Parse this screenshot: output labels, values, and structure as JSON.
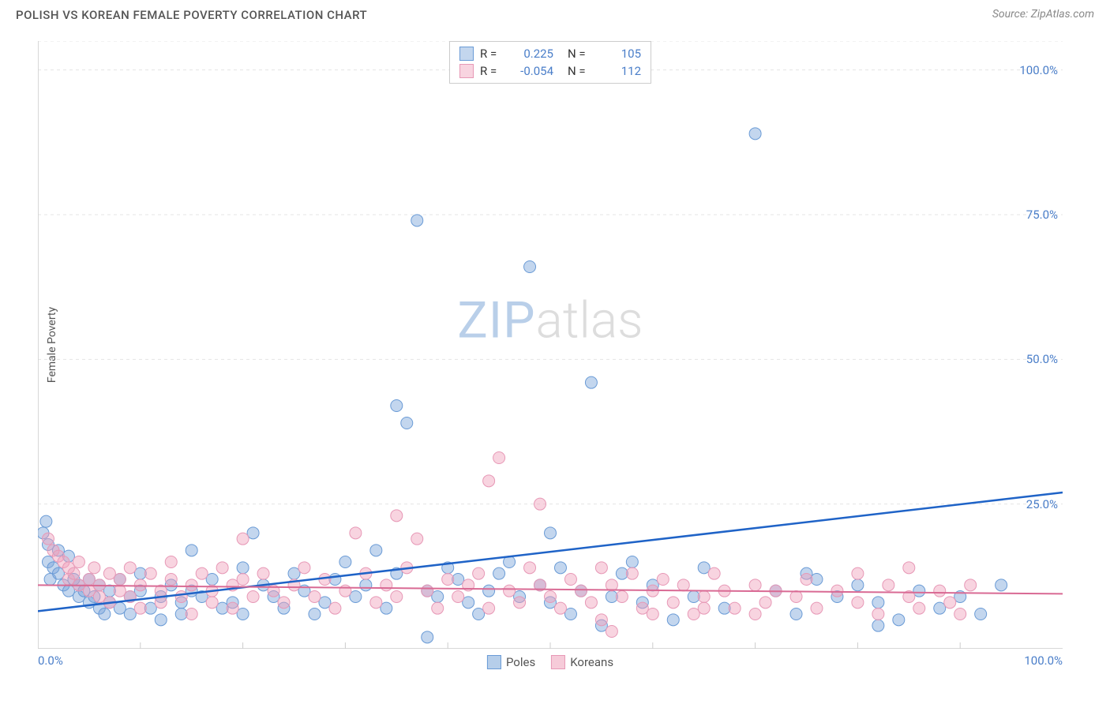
{
  "title": "POLISH VS KOREAN FEMALE POVERTY CORRELATION CHART",
  "source": "Source: ZipAtlas.com",
  "ylabel": "Female Poverty",
  "watermark": {
    "bold": "ZIP",
    "light": "atlas"
  },
  "chart": {
    "type": "scatter",
    "background_color": "#ffffff",
    "grid_color": "#e5e5e5",
    "axis_color": "#cccccc",
    "tick_minor_color": "#cccccc",
    "xlim": [
      0,
      100
    ],
    "ylim": [
      0,
      105
    ],
    "ytick_step": 25,
    "yticks": [
      {
        "v": 25,
        "label": "25.0%"
      },
      {
        "v": 50,
        "label": "50.0%"
      },
      {
        "v": 75,
        "label": "75.0%"
      },
      {
        "v": 100,
        "label": "100.0%"
      }
    ],
    "xticks_labeled": [
      {
        "v": 0,
        "label": "0.0%"
      },
      {
        "v": 100,
        "label": "100.0%"
      }
    ],
    "xticks_minor": [
      10,
      20,
      30,
      40,
      50,
      60,
      70,
      80,
      90
    ],
    "series": [
      {
        "name": "Poles",
        "fill": "rgba(122,165,217,0.45)",
        "stroke": "#6a9bd6",
        "line_color": "#1f63c7",
        "line_width": 2.5,
        "trend": {
          "y0": 6.5,
          "y100": 27
        },
        "R": "0.225",
        "N": "105",
        "points": [
          [
            0.5,
            20
          ],
          [
            0.8,
            22
          ],
          [
            1,
            18
          ],
          [
            1,
            15
          ],
          [
            1.2,
            12
          ],
          [
            1.5,
            14
          ],
          [
            2,
            13
          ],
          [
            2,
            17
          ],
          [
            2.5,
            11
          ],
          [
            3,
            10
          ],
          [
            3,
            16
          ],
          [
            3.5,
            12
          ],
          [
            4,
            11
          ],
          [
            4,
            9
          ],
          [
            4.5,
            10
          ],
          [
            5,
            12
          ],
          [
            5,
            8
          ],
          [
            5.5,
            9
          ],
          [
            6,
            7
          ],
          [
            6,
            11
          ],
          [
            6.5,
            6
          ],
          [
            7,
            8
          ],
          [
            7,
            10
          ],
          [
            8,
            12
          ],
          [
            8,
            7
          ],
          [
            9,
            9
          ],
          [
            9,
            6
          ],
          [
            10,
            10
          ],
          [
            10,
            13
          ],
          [
            11,
            7
          ],
          [
            12,
            9
          ],
          [
            12,
            5
          ],
          [
            13,
            11
          ],
          [
            14,
            8
          ],
          [
            14,
            6
          ],
          [
            15,
            10
          ],
          [
            15,
            17
          ],
          [
            16,
            9
          ],
          [
            17,
            12
          ],
          [
            18,
            7
          ],
          [
            19,
            8
          ],
          [
            20,
            14
          ],
          [
            20,
            6
          ],
          [
            21,
            20
          ],
          [
            22,
            11
          ],
          [
            23,
            9
          ],
          [
            24,
            7
          ],
          [
            25,
            13
          ],
          [
            26,
            10
          ],
          [
            27,
            6
          ],
          [
            28,
            8
          ],
          [
            29,
            12
          ],
          [
            30,
            15
          ],
          [
            31,
            9
          ],
          [
            32,
            11
          ],
          [
            33,
            17
          ],
          [
            34,
            7
          ],
          [
            35,
            42
          ],
          [
            35,
            13
          ],
          [
            36,
            39
          ],
          [
            37,
            74
          ],
          [
            38,
            10
          ],
          [
            38,
            2
          ],
          [
            39,
            9
          ],
          [
            40,
            14
          ],
          [
            41,
            12
          ],
          [
            42,
            8
          ],
          [
            43,
            6
          ],
          [
            44,
            10
          ],
          [
            45,
            13
          ],
          [
            46,
            15
          ],
          [
            47,
            9
          ],
          [
            48,
            66
          ],
          [
            49,
            11
          ],
          [
            50,
            8
          ],
          [
            50,
            20
          ],
          [
            51,
            14
          ],
          [
            52,
            6
          ],
          [
            53,
            10
          ],
          [
            54,
            46
          ],
          [
            55,
            4
          ],
          [
            56,
            9
          ],
          [
            57,
            13
          ],
          [
            58,
            15
          ],
          [
            59,
            8
          ],
          [
            60,
            11
          ],
          [
            62,
            5
          ],
          [
            64,
            9
          ],
          [
            65,
            14
          ],
          [
            67,
            7
          ],
          [
            70,
            89
          ],
          [
            72,
            10
          ],
          [
            74,
            6
          ],
          [
            76,
            12
          ],
          [
            78,
            9
          ],
          [
            80,
            11
          ],
          [
            82,
            8
          ],
          [
            84,
            5
          ],
          [
            86,
            10
          ],
          [
            88,
            7
          ],
          [
            90,
            9
          ],
          [
            92,
            6
          ],
          [
            94,
            11
          ],
          [
            82,
            4
          ],
          [
            75,
            13
          ]
        ]
      },
      {
        "name": "Koreans",
        "fill": "rgba(239,160,186,0.45)",
        "stroke": "#e798b6",
        "line_color": "#d96a94",
        "line_width": 2,
        "trend": {
          "y0": 11,
          "y100": 9.5
        },
        "R": "-0.054",
        "N": "112",
        "points": [
          [
            1,
            19
          ],
          [
            1.5,
            17
          ],
          [
            2,
            16
          ],
          [
            2.5,
            15
          ],
          [
            3,
            14
          ],
          [
            3,
            12
          ],
          [
            3.5,
            13
          ],
          [
            4,
            11
          ],
          [
            4,
            15
          ],
          [
            5,
            10
          ],
          [
            5,
            12
          ],
          [
            5.5,
            14
          ],
          [
            6,
            9
          ],
          [
            6,
            11
          ],
          [
            7,
            13
          ],
          [
            7,
            8
          ],
          [
            8,
            10
          ],
          [
            8,
            12
          ],
          [
            9,
            9
          ],
          [
            9,
            14
          ],
          [
            10,
            11
          ],
          [
            10,
            7
          ],
          [
            11,
            13
          ],
          [
            12,
            10
          ],
          [
            12,
            8
          ],
          [
            13,
            12
          ],
          [
            13,
            15
          ],
          [
            14,
            9
          ],
          [
            15,
            11
          ],
          [
            15,
            6
          ],
          [
            16,
            13
          ],
          [
            17,
            10
          ],
          [
            17,
            8
          ],
          [
            18,
            14
          ],
          [
            19,
            11
          ],
          [
            19,
            7
          ],
          [
            20,
            12
          ],
          [
            20,
            19
          ],
          [
            21,
            9
          ],
          [
            22,
            13
          ],
          [
            23,
            10
          ],
          [
            24,
            8
          ],
          [
            25,
            11
          ],
          [
            26,
            14
          ],
          [
            27,
            9
          ],
          [
            28,
            12
          ],
          [
            29,
            7
          ],
          [
            30,
            10
          ],
          [
            31,
            20
          ],
          [
            32,
            13
          ],
          [
            33,
            8
          ],
          [
            34,
            11
          ],
          [
            35,
            9
          ],
          [
            35,
            23
          ],
          [
            36,
            14
          ],
          [
            37,
            19
          ],
          [
            38,
            10
          ],
          [
            39,
            7
          ],
          [
            40,
            12
          ],
          [
            41,
            9
          ],
          [
            42,
            11
          ],
          [
            43,
            13
          ],
          [
            44,
            7
          ],
          [
            44,
            29
          ],
          [
            45,
            33
          ],
          [
            46,
            10
          ],
          [
            47,
            8
          ],
          [
            48,
            14
          ],
          [
            49,
            11
          ],
          [
            49,
            25
          ],
          [
            50,
            9
          ],
          [
            51,
            7
          ],
          [
            52,
            12
          ],
          [
            53,
            10
          ],
          [
            54,
            8
          ],
          [
            55,
            14
          ],
          [
            56,
            11
          ],
          [
            56,
            3
          ],
          [
            57,
            9
          ],
          [
            58,
            13
          ],
          [
            59,
            7
          ],
          [
            60,
            10
          ],
          [
            61,
            12
          ],
          [
            62,
            8
          ],
          [
            63,
            11
          ],
          [
            64,
            6
          ],
          [
            65,
            9
          ],
          [
            66,
            13
          ],
          [
            67,
            10
          ],
          [
            68,
            7
          ],
          [
            70,
            11
          ],
          [
            71,
            8
          ],
          [
            72,
            10
          ],
          [
            74,
            9
          ],
          [
            75,
            12
          ],
          [
            76,
            7
          ],
          [
            78,
            10
          ],
          [
            80,
            8
          ],
          [
            82,
            6
          ],
          [
            83,
            11
          ],
          [
            85,
            9
          ],
          [
            86,
            7
          ],
          [
            88,
            10
          ],
          [
            89,
            8
          ],
          [
            90,
            6
          ],
          [
            91,
            11
          ],
          [
            85,
            14
          ],
          [
            80,
            13
          ],
          [
            70,
            6
          ],
          [
            65,
            7
          ],
          [
            60,
            6
          ],
          [
            55,
            5
          ]
        ]
      }
    ],
    "legend_top": {
      "r_label": "R =",
      "n_label": "N ="
    },
    "legend_bottom": [
      {
        "swatch_fill": "rgba(122,165,217,0.55)",
        "swatch_stroke": "#6a9bd6",
        "label": "Poles"
      },
      {
        "swatch_fill": "rgba(239,160,186,0.55)",
        "swatch_stroke": "#e798b6",
        "label": "Koreans"
      }
    ]
  }
}
